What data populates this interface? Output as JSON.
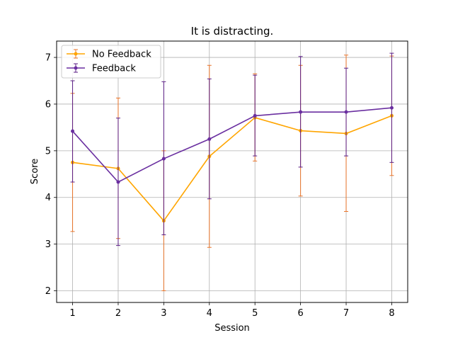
{
  "chart_data": {
    "type": "line",
    "title": "It is distracting.",
    "xlabel": "Session",
    "ylabel": "Score",
    "x": [
      1,
      2,
      3,
      4,
      5,
      6,
      7,
      8
    ],
    "xticks": [
      "1",
      "2",
      "3",
      "4",
      "5",
      "6",
      "7",
      "8"
    ],
    "yticks": [
      "2",
      "3",
      "4",
      "5",
      "6",
      "7"
    ],
    "xlim": [
      0.65,
      8.35
    ],
    "ylim": [
      1.75,
      7.35
    ],
    "grid": true,
    "legend_position": "top-left",
    "series": [
      {
        "name": "No Feedback",
        "color": "#FFA500",
        "error_color": "#E8742A",
        "values": [
          4.75,
          4.62,
          3.5,
          4.88,
          5.71,
          5.43,
          5.37,
          5.75
        ],
        "lower": [
          3.27,
          3.12,
          2.0,
          2.93,
          4.78,
          4.03,
          3.7,
          4.47
        ],
        "upper": [
          6.23,
          6.13,
          5.0,
          6.83,
          6.65,
          6.83,
          7.05,
          7.03
        ]
      },
      {
        "name": "Feedback",
        "color": "#6A2FA0",
        "error_color": "#5B1E86",
        "values": [
          5.42,
          4.33,
          4.83,
          5.25,
          5.75,
          5.83,
          5.83,
          5.92
        ],
        "lower": [
          4.33,
          2.97,
          3.2,
          3.97,
          4.89,
          4.65,
          4.89,
          4.75
        ],
        "upper": [
          6.5,
          5.7,
          6.48,
          6.54,
          6.62,
          7.02,
          6.77,
          7.09
        ]
      }
    ]
  }
}
